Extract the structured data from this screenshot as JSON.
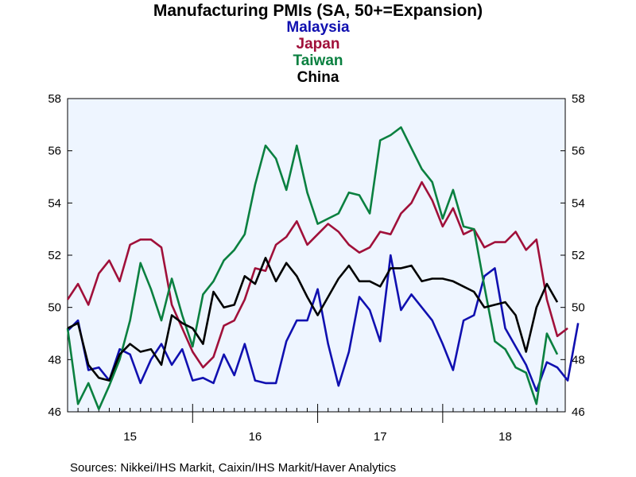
{
  "chart_data": {
    "type": "line",
    "title": "Manufacturing PMIs (SA, 50+=Expansion)",
    "source": "Sources:  Nikkei/IHS Markit, Caixin/IHS Markit/Haver Analytics",
    "ylim": [
      46,
      58
    ],
    "yticks": [
      "46",
      "48",
      "50",
      "52",
      "54",
      "56",
      "58"
    ],
    "xlim": [
      2015.0,
      2018.98
    ],
    "xticks": [
      {
        "label": "15",
        "x": 2015.5
      },
      {
        "label": "16",
        "x": 2016.5
      },
      {
        "label": "17",
        "x": 2017.5
      },
      {
        "label": "18",
        "x": 2018.5
      }
    ],
    "grid": false,
    "legend": "top-center",
    "series": [
      {
        "name": "Malaysia",
        "color": "#1010b0",
        "start": 2015.0,
        "step": 0.08333,
        "values": [
          49.1,
          49.5,
          47.6,
          47.7,
          47.2,
          48.4,
          48.2,
          47.1,
          48.0,
          48.6,
          47.8,
          48.4,
          47.2,
          47.3,
          47.1,
          48.2,
          47.4,
          48.6,
          47.2,
          47.1,
          47.1,
          48.7,
          49.5,
          49.5,
          50.7,
          48.6,
          47.0,
          48.3,
          50.4,
          49.9,
          48.7,
          52.0,
          49.9,
          50.5,
          50.0,
          49.5,
          48.6,
          47.6,
          49.5,
          49.7,
          51.2,
          51.5,
          49.2,
          48.5,
          47.8,
          46.8,
          47.9,
          47.7,
          47.2,
          49.4
        ]
      },
      {
        "name": "Japan",
        "color": "#a0103a",
        "start": 2015.0,
        "step": 0.08333,
        "values": [
          50.3,
          50.9,
          50.1,
          51.3,
          51.8,
          51.0,
          52.4,
          52.6,
          52.6,
          52.3,
          50.1,
          49.2,
          48.3,
          47.7,
          48.1,
          49.3,
          49.5,
          50.3,
          51.5,
          51.4,
          52.4,
          52.7,
          53.3,
          52.4,
          52.8,
          53.2,
          52.9,
          52.4,
          52.1,
          52.3,
          52.9,
          52.8,
          53.6,
          54.0,
          54.8,
          54.1,
          53.1,
          53.8,
          52.8,
          53.0,
          52.3,
          52.5,
          52.5,
          52.9,
          52.2,
          52.6,
          50.3,
          48.9,
          49.2
        ]
      },
      {
        "name": "Taiwan",
        "color": "#0a8040",
        "start": 2015.0,
        "step": 0.08333,
        "values": [
          49.2,
          46.3,
          47.1,
          46.1,
          47.0,
          48.0,
          49.5,
          51.7,
          50.7,
          49.5,
          51.1,
          49.7,
          48.5,
          50.5,
          51.0,
          51.8,
          52.2,
          52.8,
          54.7,
          56.2,
          55.7,
          54.5,
          56.2,
          54.4,
          53.2,
          53.4,
          53.6,
          54.4,
          54.3,
          53.6,
          56.4,
          56.6,
          56.9,
          56.1,
          55.3,
          54.8,
          53.4,
          54.5,
          53.1,
          53.0,
          50.8,
          48.7,
          48.4,
          47.7,
          47.5,
          46.3,
          49.0,
          48.2
        ]
      },
      {
        "name": "China",
        "color": "#000000",
        "start": 2015.0,
        "step": 0.08333,
        "values": [
          49.2,
          49.4,
          47.8,
          47.3,
          47.2,
          48.2,
          48.6,
          48.3,
          48.4,
          47.8,
          49.7,
          49.4,
          49.2,
          48.6,
          50.6,
          50.0,
          50.1,
          51.2,
          50.9,
          51.9,
          51.0,
          51.7,
          51.2,
          50.4,
          49.7,
          50.4,
          51.1,
          51.6,
          51.0,
          51.0,
          50.8,
          51.5,
          51.5,
          51.6,
          51.0,
          51.1,
          51.1,
          51.0,
          50.8,
          50.6,
          50.0,
          50.1,
          50.2,
          49.7,
          48.3,
          50.0,
          50.9,
          50.2
        ]
      }
    ]
  }
}
